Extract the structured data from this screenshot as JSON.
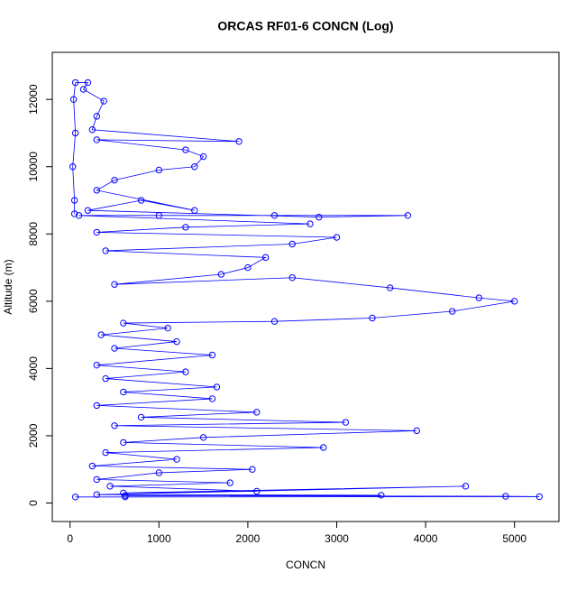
{
  "chart_data": {
    "type": "line",
    "title": "ORCAS RF01-6 CONCN (Log)",
    "x_label": "CONCN",
    "y_label": "Altitude (m)",
    "color": "#0000ff",
    "marker": "circle",
    "series": [
      {
        "x": [
          60,
          620,
          5280,
          4900,
          620,
          3500,
          300,
          4450,
          600,
          2100,
          450,
          1800,
          300,
          1000,
          2050,
          250,
          1200,
          400,
          2850,
          600,
          1500,
          3900,
          500,
          3100,
          800,
          2100,
          300,
          1600,
          600,
          1650,
          400,
          1300,
          300,
          1600,
          500,
          1200,
          350,
          1100,
          600,
          2300,
          3400,
          4300,
          5000,
          4600,
          3600,
          2500,
          500,
          1700,
          2000,
          2200,
          400,
          2500,
          3000,
          300,
          1300,
          2700,
          100,
          1000,
          2300,
          3800,
          2800,
          200,
          800,
          1400,
          300,
          500,
          1000,
          1400,
          1500,
          1300,
          300,
          1900,
          250,
          300,
          380,
          150,
          200,
          60,
          40,
          60,
          30,
          50,
          50
        ],
        "values": [
          180,
          180,
          190,
          200,
          220,
          230,
          250,
          500,
          300,
          350,
          500,
          600,
          700,
          900,
          1000,
          1100,
          1300,
          1500,
          1650,
          1800,
          1950,
          2150,
          2300,
          2400,
          2550,
          2700,
          2900,
          3100,
          3300,
          3450,
          3700,
          3900,
          4100,
          4400,
          4600,
          4800,
          5000,
          5200,
          5350,
          5400,
          5500,
          5700,
          6000,
          6100,
          6400,
          6700,
          6500,
          6800,
          7000,
          7300,
          7500,
          7700,
          7900,
          8050,
          8200,
          8300,
          8550,
          8550,
          8550,
          8550,
          8500,
          8700,
          9000,
          8700,
          9300,
          9600,
          9900,
          10000,
          10300,
          10500,
          10800,
          10750,
          11100,
          11500,
          11950,
          12300,
          12500,
          12500,
          12000,
          11000,
          10000,
          9000,
          8600
        ]
      }
    ],
    "xlim": [
      -200,
      5500
    ],
    "ylim": [
      -550,
      13400
    ],
    "xticks": [
      0,
      1000,
      2000,
      3000,
      4000,
      5000
    ],
    "yticks": [
      0,
      2000,
      4000,
      6000,
      8000,
      10000,
      12000
    ]
  }
}
